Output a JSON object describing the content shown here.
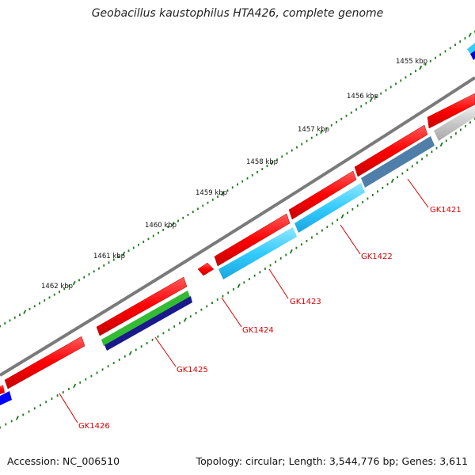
{
  "title": "Geobacillus kaustophilus HTA426, complete genome",
  "footer": {
    "accession": "Accession: NC_006510",
    "summary": "Topology: circular; Length: 3,544,776 bp; Genes: 3,611"
  },
  "colors": {
    "backbone": "#808080",
    "forward_cds": "#ff0000",
    "reverse_cds": "#33ccff",
    "label": "#d40000",
    "ticks": "#1a7a1a"
  },
  "ruler": [
    {
      "label": "1455 kbp"
    },
    {
      "label": "1456 kbp"
    },
    {
      "label": "1457 kbp"
    },
    {
      "label": "1458 kbp"
    },
    {
      "label": "1459 kbp"
    },
    {
      "label": "1460 kbp"
    },
    {
      "label": "1461 kbp"
    },
    {
      "label": "1462 kbp"
    }
  ],
  "genes": [
    {
      "label": "GK1421"
    },
    {
      "label": "GK1422"
    },
    {
      "label": "GK1423"
    },
    {
      "label": "GK1424"
    },
    {
      "label": "GK1425"
    },
    {
      "label": "GK1426"
    }
  ]
}
